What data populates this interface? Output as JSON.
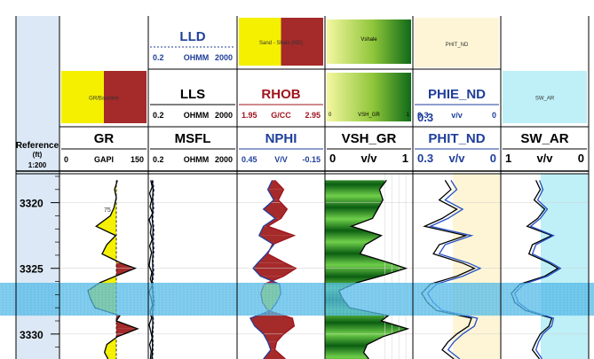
{
  "chart_data": {
    "type": "line",
    "depth_axis": {
      "title": "Reference",
      "unit": "(ft)",
      "scale": "1:200",
      "range": [
        3317.8,
        3331.9
      ],
      "ticks": [
        3320,
        3325,
        3330
      ],
      "tick_labels": [
        "3320",
        "3325",
        "3330"
      ]
    },
    "highlight_zone": {
      "top": 3326.1,
      "bottom": 3328.6,
      "color": "#4db7e6"
    },
    "tracks": [
      {
        "key": "gr",
        "headers": [
          {
            "label": "GR/Baseline",
            "style": "yellow-red"
          },
          {
            "label": "GR",
            "left": "0",
            "unit": "GAPI",
            "right": "150",
            "color": "#000000"
          }
        ],
        "curves": [
          {
            "name": "GR",
            "color": "#000000",
            "range": [
              0,
              150
            ],
            "depth": [
              3318.3,
              3319,
              3319.6,
              3320.4,
              3321,
              3321.8,
              3322.5,
              3323.2,
              3323.9,
              3324.6,
              3325,
              3325.5,
              3326.1,
              3326.7,
              3327.3,
              3328,
              3328.6,
              3329,
              3329.6,
              3330.2,
              3330.8,
              3331.4,
              3331.9
            ],
            "values": [
              98,
              93,
              96,
              92,
              86,
              62,
              95,
              80,
              72,
              104,
              128,
              100,
              68,
              48,
              52,
              60,
              102,
              96,
              132,
              98,
              80,
              76,
              82
            ]
          },
          {
            "name": "Baseline",
            "color": "#000000",
            "range": [
              0,
              150
            ],
            "depth": [
              3318.3,
              3331.9
            ],
            "values": [
              96,
              96
            ]
          }
        ]
      },
      {
        "key": "res",
        "headers": [
          {
            "label": "LLD",
            "left": "0.2",
            "unit": "OHMM",
            "right": "2000",
            "color": "#1f3f9a"
          },
          {
            "label": "LLS",
            "left": "0.2",
            "unit": "OHMM",
            "right": "2000",
            "color": "#000000"
          },
          {
            "label": "MSFL",
            "left": "0.2",
            "unit": "OHMM",
            "right": "2000",
            "color": "#000000"
          }
        ],
        "curves": [
          {
            "name": "LLD",
            "color": "#1f3f9a",
            "depth": [
              3318.3,
              3319,
              3319.7,
              3320.4,
              3321.2,
              3322,
              3322.8,
              3323.6,
              3324.4,
              3325.2,
              3326,
              3326.8,
              3327.6,
              3328.4,
              3329.2,
              3330,
              3330.8,
              3331.6,
              3331.9
            ],
            "values": [
              0.32,
              0.36,
              0.33,
              0.35,
              0.32,
              0.36,
              0.34,
              0.36,
              0.33,
              0.35,
              0.32,
              0.34,
              0.37,
              0.33,
              0.34,
              0.32,
              0.33,
              0.32,
              0.31
            ]
          },
          {
            "name": "LLS",
            "color": "#000000",
            "depth": [
              3318.3,
              3319,
              3319.7,
              3320.4,
              3321.2,
              3322,
              3322.8,
              3323.6,
              3324.4,
              3325.2,
              3326,
              3326.8,
              3327.6,
              3328.4,
              3329.2,
              3330,
              3330.8,
              3331.6,
              3331.9
            ],
            "values": [
              0.3,
              0.33,
              0.31,
              0.32,
              0.3,
              0.33,
              0.31,
              0.33,
              0.31,
              0.32,
              0.3,
              0.32,
              0.34,
              0.31,
              0.32,
              0.3,
              0.31,
              0.3,
              0.29
            ]
          },
          {
            "name": "MSFL",
            "color": "#000000",
            "depth": [
              3318.3,
              3318.8,
              3319.3,
              3319.8,
              3320.3,
              3320.8,
              3321.3,
              3321.8,
              3322.3,
              3322.8,
              3323.3,
              3323.8,
              3324.3,
              3324.8,
              3325.3,
              3325.8,
              3326.3,
              3326.8,
              3327.3,
              3327.8,
              3328.3,
              3328.8,
              3329.3,
              3329.8,
              3330.3,
              3330.8,
              3331.3,
              3331.9
            ],
            "values": [
              0.26,
              0.3,
              0.23,
              0.28,
              0.24,
              0.31,
              0.22,
              0.27,
              0.25,
              0.3,
              0.23,
              0.28,
              0.24,
              0.22,
              0.29,
              0.25,
              0.3,
              0.22,
              0.27,
              0.31,
              0.24,
              0.28,
              0.22,
              0.26,
              0.3,
              0.23,
              0.27,
              0.25
            ]
          }
        ]
      },
      {
        "key": "dn",
        "headers": [
          {
            "label": "Sand - Shale (ND)",
            "style": "yellow-red"
          },
          {
            "label": "RHOB",
            "left": "1.95",
            "unit": "G/CC",
            "right": "2.95",
            "color": "#a0141e"
          },
          {
            "label": "NPHI",
            "left": "0.45",
            "unit": "V/V",
            "right": "-0.15",
            "color": "#1f3f9a"
          }
        ],
        "curves": [
          {
            "name": "RHOB",
            "color": "#a0141e",
            "range": [
              1.95,
              2.95
            ],
            "depth": [
              3318.3,
              3319,
              3319.8,
              3320.5,
              3321.2,
              3321.8,
              3322.5,
              3323.2,
              3323.9,
              3324.6,
              3325,
              3325.6,
              3326.2,
              3326.9,
              3327.6,
              3328.2,
              3328.8,
              3329.4,
              3330,
              3330.6,
              3331.2,
              3331.9
            ],
            "values": [
              2.38,
              2.48,
              2.42,
              2.52,
              2.45,
              2.3,
              2.6,
              2.35,
              2.3,
              2.5,
              2.62,
              2.48,
              2.26,
              2.22,
              2.24,
              2.3,
              2.58,
              2.6,
              2.48,
              2.4,
              2.38,
              2.5
            ]
          },
          {
            "name": "NPHI",
            "color": "#1f3f9a",
            "range": [
              0.45,
              -0.15
            ],
            "depth": [
              3318.3,
              3319,
              3319.8,
              3320.5,
              3321.2,
              3321.8,
              3322.5,
              3323.2,
              3323.9,
              3324.6,
              3325,
              3325.6,
              3326.2,
              3326.9,
              3327.6,
              3328.2,
              3328.8,
              3329.4,
              3330,
              3330.6,
              3331.2,
              3331.9
            ],
            "values": [
              0.21,
              0.24,
              0.2,
              0.27,
              0.19,
              0.27,
              0.3,
              0.2,
              0.25,
              0.31,
              0.34,
              0.29,
              0.16,
              0.15,
              0.18,
              0.22,
              0.36,
              0.33,
              0.27,
              0.24,
              0.22,
              0.27
            ]
          }
        ]
      },
      {
        "key": "vsh",
        "headers": [
          {
            "label": "Vshale",
            "style": "green-gradient"
          },
          {
            "label": "VSH_GR",
            "left": "0",
            "unit": "",
            "right": "1",
            "style": "green-gradient"
          },
          {
            "label": "VSH_GR",
            "left": "0",
            "unit": "v/v",
            "right": "1",
            "color": "#000000"
          }
        ],
        "curves": [
          {
            "name": "VSH_GR",
            "color": "#000000",
            "range": [
              0,
              1
            ],
            "depth": [
              3318.3,
              3319,
              3319.8,
              3320.5,
              3321.2,
              3321.8,
              3322.5,
              3323.2,
              3323.9,
              3324.6,
              3325,
              3325.5,
              3326.1,
              3326.7,
              3327.3,
              3328,
              3328.6,
              3329,
              3329.6,
              3330.2,
              3330.8,
              3331.4,
              3331.9
            ],
            "values": [
              0.7,
              0.62,
              0.66,
              0.6,
              0.54,
              0.3,
              0.64,
              0.46,
              0.4,
              0.74,
              0.92,
              0.68,
              0.36,
              0.16,
              0.2,
              0.28,
              0.72,
              0.64,
              0.94,
              0.66,
              0.48,
              0.44,
              0.5
            ]
          }
        ]
      },
      {
        "key": "phi",
        "headers": [
          {
            "label": "PHIT_ND",
            "style": "cream"
          },
          {
            "label": "PHIE_ND",
            "left": "0.3",
            "unit": "v/v",
            "right": "0",
            "color": "#1f3f9a"
          },
          {
            "label": "PHIT_ND",
            "left": "0.3",
            "unit": "v/v",
            "right": "0",
            "color": "#1f3f9a"
          }
        ],
        "curves": [
          {
            "name": "PHIT_ND",
            "color": "#000000",
            "range": [
              0.3,
              0
            ],
            "depth": [
              3318.3,
              3319,
              3319.8,
              3320.5,
              3321.2,
              3321.8,
              3322.5,
              3323.2,
              3323.9,
              3324.6,
              3325,
              3325.6,
              3326.2,
              3326.9,
              3327.6,
              3328.2,
              3328.8,
              3329.4,
              3330,
              3330.6,
              3331.2,
              3331.9
            ],
            "values": [
              0.19,
              0.17,
              0.21,
              0.15,
              0.2,
              0.26,
              0.12,
              0.21,
              0.23,
              0.13,
              0.09,
              0.15,
              0.24,
              0.27,
              0.25,
              0.22,
              0.1,
              0.11,
              0.15,
              0.18,
              0.2,
              0.16
            ]
          },
          {
            "name": "PHIE_ND",
            "color": "#2450c8",
            "range": [
              0.3,
              0
            ],
            "depth": [
              3318.3,
              3319,
              3319.8,
              3320.5,
              3321.2,
              3321.8,
              3322.5,
              3323.2,
              3323.9,
              3324.6,
              3325,
              3325.6,
              3326.2,
              3326.9,
              3327.6,
              3328.2,
              3328.8,
              3329.4,
              3330,
              3330.6,
              3331.2,
              3331.9
            ],
            "values": [
              0.17,
              0.15,
              0.19,
              0.13,
              0.18,
              0.24,
              0.1,
              0.19,
              0.21,
              0.11,
              0.07,
              0.13,
              0.22,
              0.25,
              0.23,
              0.2,
              0.08,
              0.09,
              0.13,
              0.16,
              0.18,
              0.14
            ]
          }
        ]
      },
      {
        "key": "sw",
        "headers": [
          {
            "label": "SW_AR",
            "style": "cyan"
          },
          {
            "label": "SW_AR",
            "left": "1",
            "unit": "v/v",
            "right": "0",
            "color": "#000000"
          }
        ],
        "curves": [
          {
            "name": "SW_AR",
            "color": "#000000",
            "range": [
              1,
              0
            ],
            "depth": [
              3318.3,
              3319,
              3319.8,
              3320.5,
              3321.2,
              3321.8,
              3322.5,
              3323.2,
              3323.9,
              3324.6,
              3325,
              3325.6,
              3326.2,
              3326.9,
              3327.6,
              3328.2,
              3328.8,
              3329.4,
              3330,
              3330.6,
              3331.2,
              3331.9
            ],
            "values": [
              0.6,
              0.55,
              0.62,
              0.5,
              0.58,
              0.7,
              0.42,
              0.64,
              0.68,
              0.45,
              0.35,
              0.5,
              0.78,
              0.88,
              0.84,
              0.72,
              0.42,
              0.45,
              0.55,
              0.6,
              0.64,
              0.56
            ]
          },
          {
            "name": "SW_AR_blue",
            "color": "#2450c8",
            "range": [
              1,
              0
            ],
            "depth": [
              3318.3,
              3319,
              3319.8,
              3320.5,
              3321.2,
              3321.8,
              3322.5,
              3323.2,
              3323.9,
              3324.6,
              3325,
              3325.6,
              3326.2,
              3326.9,
              3327.6,
              3328.2,
              3328.8,
              3329.4,
              3330,
              3330.6,
              3331.2,
              3331.9
            ],
            "values": [
              0.56,
              0.52,
              0.58,
              0.47,
              0.55,
              0.66,
              0.4,
              0.6,
              0.64,
              0.42,
              0.32,
              0.47,
              0.74,
              0.84,
              0.8,
              0.68,
              0.4,
              0.42,
              0.52,
              0.57,
              0.6,
              0.53
            ]
          }
        ]
      }
    ],
    "annotations": [
      {
        "text": "75",
        "depth": 3320.5,
        "track": "gr"
      }
    ],
    "colors": {
      "sand_fill": "#f4f000",
      "shale_fill": "#a52a2a",
      "vsh_dark": "#0d6a16",
      "vsh_light": "#dff5d0",
      "phi_fill": "#fdf5d6",
      "sw_fill": "#bff0f7",
      "zone": "#4db7e6"
    }
  }
}
